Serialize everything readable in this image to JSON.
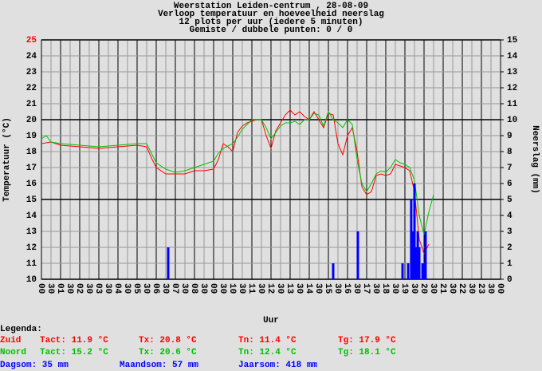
{
  "chart_data": {
    "type": "line",
    "title": [
      "Weerstation Leiden-centrum , 28-08-09",
      "Verloop temperatuur en hoeveelheid neerslag",
      "12 plots per uur (iedere 5 minuten)",
      "Gemiste / dubbele punten: 0 / 0"
    ],
    "ylabel": "Temperatuur (°C)",
    "y2label": "Neerslag (mm)",
    "xlabel": "Uur",
    "xlim": [
      0,
      24
    ],
    "ylim": [
      10,
      25
    ],
    "y2lim": [
      0,
      15
    ],
    "grid": true,
    "yticks": [
      10,
      11,
      12,
      13,
      14,
      15,
      16,
      17,
      18,
      19,
      20,
      21,
      22,
      23,
      24,
      25
    ],
    "y2ticks": [
      0,
      1,
      2,
      3,
      4,
      5,
      6,
      7,
      8,
      9,
      10,
      11,
      12,
      13,
      14,
      15
    ],
    "xticks": [
      {
        "value": 0,
        "label": "00"
      },
      {
        "value": 0.5,
        "label": "30"
      },
      {
        "value": 1,
        "label": "01"
      },
      {
        "value": 1.5,
        "label": "30"
      },
      {
        "value": 2,
        "label": "02"
      },
      {
        "value": 2.5,
        "label": "30"
      },
      {
        "value": 3,
        "label": "03"
      },
      {
        "value": 3.5,
        "label": "30"
      },
      {
        "value": 4,
        "label": "04"
      },
      {
        "value": 4.5,
        "label": "30"
      },
      {
        "value": 5,
        "label": "05"
      },
      {
        "value": 5.5,
        "label": "30"
      },
      {
        "value": 6,
        "label": "06"
      },
      {
        "value": 6.5,
        "label": "30"
      },
      {
        "value": 7,
        "label": "07"
      },
      {
        "value": 7.5,
        "label": "30"
      },
      {
        "value": 8,
        "label": "08"
      },
      {
        "value": 8.5,
        "label": "30"
      },
      {
        "value": 9,
        "label": "09"
      },
      {
        "value": 9.5,
        "label": "30"
      },
      {
        "value": 10,
        "label": "10"
      },
      {
        "value": 10.5,
        "label": "30"
      },
      {
        "value": 11,
        "label": "11"
      },
      {
        "value": 11.5,
        "label": "30"
      },
      {
        "value": 12,
        "label": "12"
      },
      {
        "value": 12.5,
        "label": "30"
      },
      {
        "value": 13,
        "label": "13"
      },
      {
        "value": 13.5,
        "label": "30"
      },
      {
        "value": 14,
        "label": "14"
      },
      {
        "value": 14.5,
        "label": "30"
      },
      {
        "value": 15,
        "label": "15"
      },
      {
        "value": 15.5,
        "label": "30"
      },
      {
        "value": 16,
        "label": "16"
      },
      {
        "value": 16.5,
        "label": "30"
      },
      {
        "value": 17,
        "label": "17"
      },
      {
        "value": 17.5,
        "label": "30"
      },
      {
        "value": 18,
        "label": "18"
      },
      {
        "value": 18.5,
        "label": "30"
      },
      {
        "value": 19,
        "label": "19"
      },
      {
        "value": 19.5,
        "label": "30"
      },
      {
        "value": 20,
        "label": "20"
      },
      {
        "value": 20.5,
        "label": "30"
      },
      {
        "value": 21,
        "label": "21"
      },
      {
        "value": 21.5,
        "label": "30"
      },
      {
        "value": 22,
        "label": "22"
      },
      {
        "value": 22.5,
        "label": "30"
      },
      {
        "value": 23,
        "label": "23"
      },
      {
        "value": 23.5,
        "label": "30"
      },
      {
        "value": 24,
        "label": "00"
      }
    ],
    "series": [
      {
        "name": "Zuid",
        "color": "#ff0000",
        "x": [
          0,
          0.5,
          1,
          2,
          3,
          4,
          5,
          5.5,
          5.75,
          6,
          6.5,
          7,
          7.5,
          8,
          8.5,
          9,
          9.25,
          9.5,
          9.75,
          10,
          10.25,
          10.5,
          10.75,
          11,
          11.25,
          11.5,
          11.75,
          12,
          12.25,
          12.5,
          12.75,
          13,
          13.25,
          13.5,
          13.75,
          14,
          14.25,
          14.5,
          14.75,
          15,
          15.25,
          15.5,
          15.75,
          16,
          16.25,
          16.5,
          16.75,
          17,
          17.25,
          17.5,
          17.75,
          18,
          18.25,
          18.5,
          18.75,
          19,
          19.25,
          19.5,
          19.75,
          20,
          20.25
        ],
        "values": [
          18.5,
          18.6,
          18.4,
          18.3,
          18.2,
          18.3,
          18.4,
          18.3,
          17.6,
          17.0,
          16.6,
          16.6,
          16.6,
          16.8,
          16.8,
          16.9,
          17.5,
          18.5,
          18.3,
          18.0,
          19.2,
          19.6,
          19.8,
          19.9,
          20.0,
          20.0,
          19.0,
          18.2,
          19.3,
          19.8,
          20.3,
          20.6,
          20.3,
          20.5,
          20.2,
          20.0,
          20.5,
          20.0,
          19.5,
          20.4,
          20.3,
          18.5,
          17.8,
          19.0,
          19.5,
          18.0,
          15.8,
          15.3,
          15.5,
          16.5,
          16.6,
          16.5,
          16.6,
          17.2,
          17.1,
          17.0,
          16.8,
          15.5,
          12.5,
          11.6,
          12.2
        ]
      },
      {
        "name": "Noord",
        "color": "#00c000",
        "x": [
          0,
          0.25,
          0.5,
          1,
          2,
          3,
          4,
          5,
          5.5,
          5.75,
          6,
          6.5,
          7,
          7.5,
          8,
          8.5,
          9,
          9.25,
          9.5,
          10,
          10.25,
          10.5,
          10.75,
          11,
          11.5,
          11.75,
          12,
          12.25,
          12.5,
          12.75,
          13,
          13.25,
          13.5,
          13.75,
          14,
          14.25,
          14.5,
          14.75,
          15,
          15.25,
          15.5,
          15.75,
          16,
          16.25,
          16.5,
          16.75,
          17,
          17.25,
          17.5,
          17.75,
          18,
          18.25,
          18.5,
          18.75,
          19,
          19.25,
          19.5,
          19.75,
          20,
          20.25,
          20.5
        ],
        "values": [
          18.8,
          19.0,
          18.6,
          18.5,
          18.4,
          18.3,
          18.4,
          18.5,
          18.5,
          17.9,
          17.3,
          16.9,
          16.7,
          16.8,
          17.0,
          17.2,
          17.4,
          17.9,
          18.2,
          18.5,
          18.9,
          19.4,
          19.7,
          20.0,
          20.0,
          19.5,
          18.8,
          19.2,
          19.6,
          19.8,
          19.8,
          19.9,
          19.7,
          20.0,
          20.0,
          20.4,
          20.3,
          19.6,
          20.5,
          20.0,
          19.8,
          19.5,
          20.0,
          19.7,
          17.5,
          16.0,
          15.5,
          16.0,
          16.6,
          16.8,
          16.7,
          17.0,
          17.5,
          17.3,
          17.2,
          17.0,
          16.2,
          14.0,
          12.8,
          14.2,
          15.3
        ]
      },
      {
        "type": "bar",
        "axis": "y2",
        "color": "#0000ff",
        "x": [
          6.625,
          15.25,
          16.54,
          18.875,
          19.17,
          19.33,
          19.42,
          19.5,
          19.58,
          19.67,
          19.75,
          19.92,
          20.0,
          20.08
        ],
        "values": [
          2,
          1,
          3,
          1,
          1,
          5,
          3,
          6,
          2,
          3,
          2,
          1,
          1,
          3
        ]
      }
    ],
    "legend_stats": {
      "title": "Legenda:",
      "rows": [
        [
          "Tact: 11.9 °C",
          "Tx: 20.8 °C",
          "Tn: 11.4 °C",
          "Tg: 17.9 °C"
        ],
        [
          "Tact: 15.2 °C",
          "Tx: 20.6 °C",
          "Tn: 12.4 °C",
          "Tg: 18.1 °C"
        ]
      ],
      "footer": [
        "Dagsom: 35 mm",
        "Maandsom: 57 mm",
        "Jaarsom: 418 mm"
      ]
    }
  }
}
